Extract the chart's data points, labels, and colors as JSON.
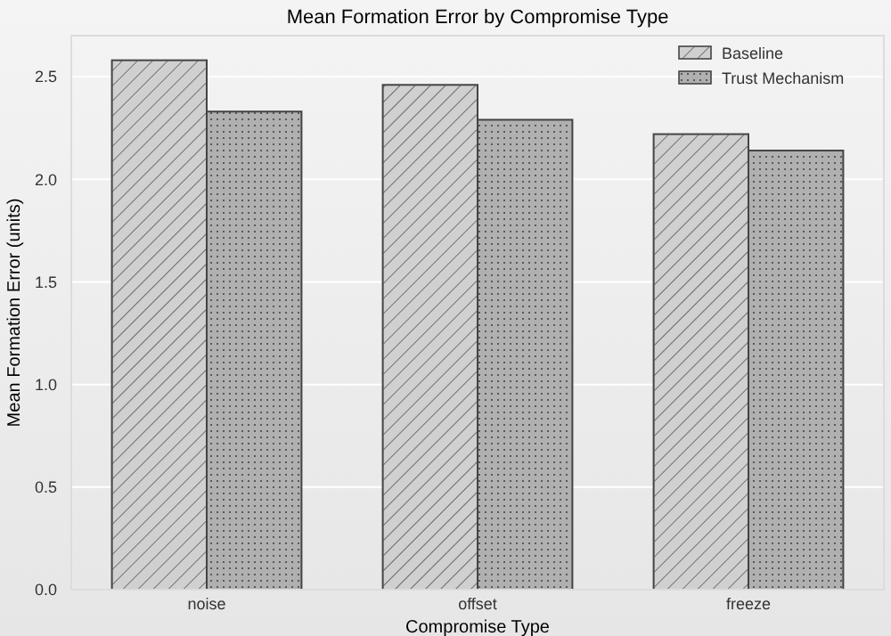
{
  "chart_data": {
    "type": "bar",
    "title": "Mean Formation Error by Compromise Type",
    "xlabel": "Compromise Type",
    "ylabel": "Mean Formation Error (units)",
    "categories": [
      "noise",
      "offset",
      "freeze"
    ],
    "series": [
      {
        "name": "Baseline",
        "color": "#d0d0d0",
        "values": [
          2.58,
          2.46,
          2.22
        ]
      },
      {
        "name": "Trust Mechanism",
        "color": "#b0b0b0",
        "values": [
          2.33,
          2.29,
          2.14
        ]
      }
    ],
    "ylim": [
      0,
      2.7
    ],
    "yticks": [
      {
        "value": 0,
        "label": "0.0"
      },
      {
        "value": 0.5,
        "label": "0.5"
      },
      {
        "value": 1,
        "label": "1.0"
      },
      {
        "value": 1.5,
        "label": "1.5"
      },
      {
        "value": 2,
        "label": "2.0"
      },
      {
        "value": 2.5,
        "label": "2.5"
      }
    ],
    "grid": true,
    "legend": "top right"
  }
}
